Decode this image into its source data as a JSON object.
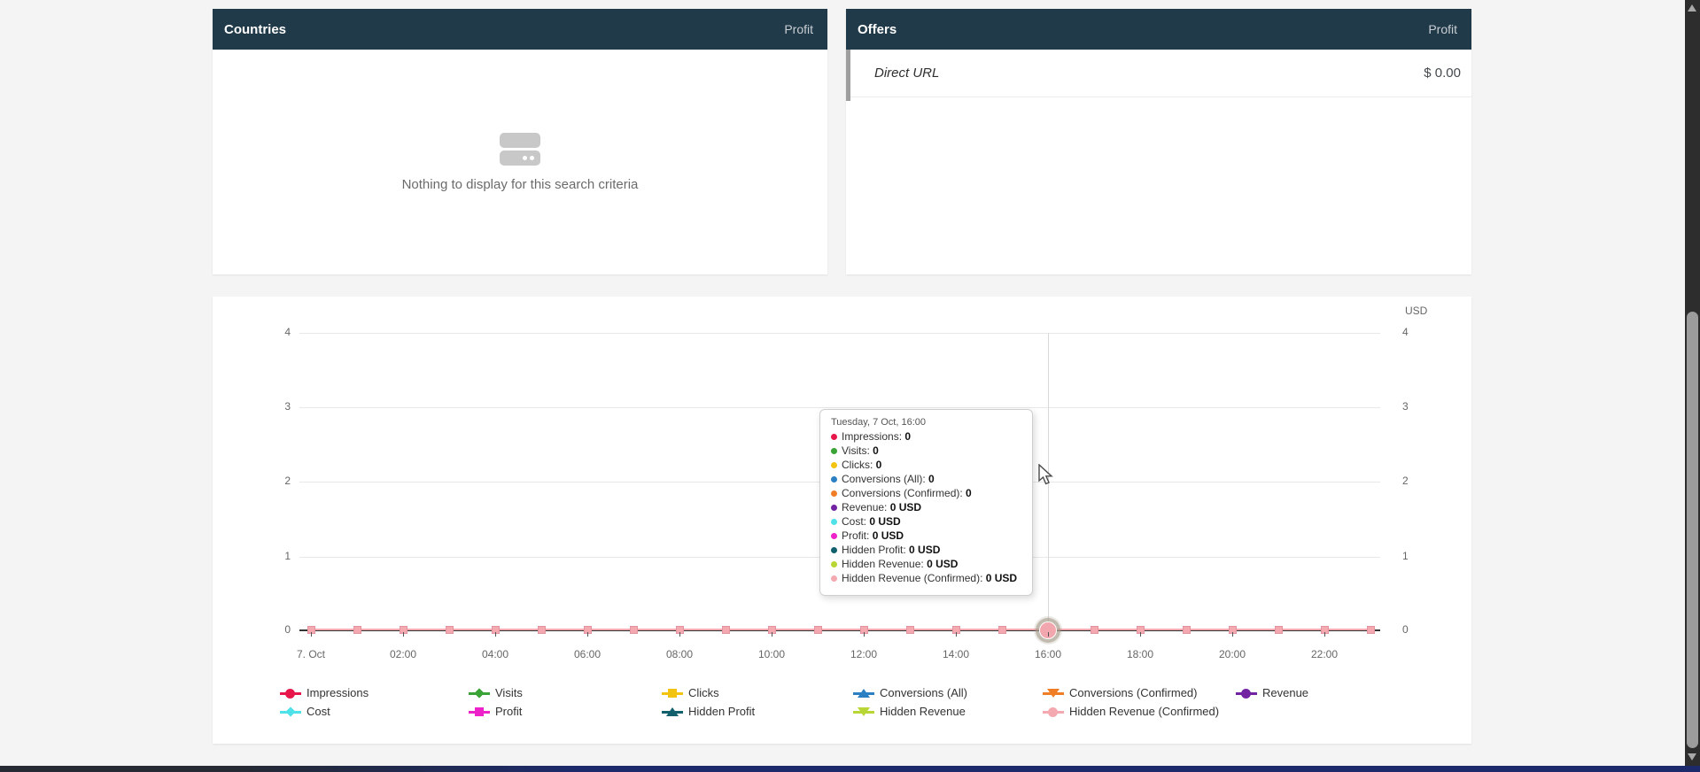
{
  "countries_panel": {
    "title": "Countries",
    "metric": "Profit",
    "empty_text": "Nothing to display for this search criteria"
  },
  "offers_panel": {
    "title": "Offers",
    "metric": "Profit",
    "rows": [
      {
        "name": "Direct URL",
        "value": "$ 0.00"
      }
    ]
  },
  "chart": {
    "unit_label": "USD",
    "tooltip_title": "Tuesday, 7 Oct, 16:00",
    "hovered_x": "16:00"
  },
  "chart_data": {
    "type": "line",
    "title": "",
    "xlabel": "",
    "ylabel": "USD",
    "ylim": [
      0,
      4
    ],
    "grid": true,
    "legend_position": "bottom",
    "x_date": "Tuesday, 7 Oct",
    "x": [
      "00:00",
      "01:00",
      "02:00",
      "03:00",
      "04:00",
      "05:00",
      "06:00",
      "07:00",
      "08:00",
      "09:00",
      "10:00",
      "11:00",
      "12:00",
      "13:00",
      "14:00",
      "15:00",
      "16:00",
      "17:00",
      "18:00",
      "19:00",
      "20:00",
      "21:00",
      "22:00",
      "23:00"
    ],
    "x_axis_labels": [
      "7. Oct",
      "02:00",
      "04:00",
      "06:00",
      "08:00",
      "10:00",
      "12:00",
      "14:00",
      "16:00",
      "18:00",
      "20:00",
      "22:00"
    ],
    "y_ticks": [
      "0",
      "1",
      "2",
      "3",
      "4"
    ],
    "series": [
      {
        "name": "Impressions",
        "color": "#e8174b",
        "marker": "circle",
        "unit": "",
        "values": [
          0,
          0,
          0,
          0,
          0,
          0,
          0,
          0,
          0,
          0,
          0,
          0,
          0,
          0,
          0,
          0,
          0,
          0,
          0,
          0,
          0,
          0,
          0,
          0
        ]
      },
      {
        "name": "Visits",
        "color": "#3aa335",
        "marker": "diamond",
        "unit": "",
        "values": [
          0,
          0,
          0,
          0,
          0,
          0,
          0,
          0,
          0,
          0,
          0,
          0,
          0,
          0,
          0,
          0,
          0,
          0,
          0,
          0,
          0,
          0,
          0,
          0
        ]
      },
      {
        "name": "Clicks",
        "color": "#f2c40f",
        "marker": "square",
        "unit": "",
        "values": [
          0,
          0,
          0,
          0,
          0,
          0,
          0,
          0,
          0,
          0,
          0,
          0,
          0,
          0,
          0,
          0,
          0,
          0,
          0,
          0,
          0,
          0,
          0,
          0
        ]
      },
      {
        "name": "Conversions (All)",
        "color": "#2b7fc3",
        "marker": "tri-up",
        "unit": "",
        "values": [
          0,
          0,
          0,
          0,
          0,
          0,
          0,
          0,
          0,
          0,
          0,
          0,
          0,
          0,
          0,
          0,
          0,
          0,
          0,
          0,
          0,
          0,
          0,
          0
        ]
      },
      {
        "name": "Conversions (Confirmed)",
        "color": "#ef7e26",
        "marker": "tri-down",
        "unit": "",
        "values": [
          0,
          0,
          0,
          0,
          0,
          0,
          0,
          0,
          0,
          0,
          0,
          0,
          0,
          0,
          0,
          0,
          0,
          0,
          0,
          0,
          0,
          0,
          0,
          0
        ]
      },
      {
        "name": "Revenue",
        "color": "#7123a1",
        "marker": "circle",
        "unit": "USD",
        "values": [
          0,
          0,
          0,
          0,
          0,
          0,
          0,
          0,
          0,
          0,
          0,
          0,
          0,
          0,
          0,
          0,
          0,
          0,
          0,
          0,
          0,
          0,
          0,
          0
        ]
      },
      {
        "name": "Cost",
        "color": "#4ee1e8",
        "marker": "diamond",
        "unit": "USD",
        "values": [
          0,
          0,
          0,
          0,
          0,
          0,
          0,
          0,
          0,
          0,
          0,
          0,
          0,
          0,
          0,
          0,
          0,
          0,
          0,
          0,
          0,
          0,
          0,
          0
        ]
      },
      {
        "name": "Profit",
        "color": "#ee22c9",
        "marker": "square",
        "unit": "USD",
        "values": [
          0,
          0,
          0,
          0,
          0,
          0,
          0,
          0,
          0,
          0,
          0,
          0,
          0,
          0,
          0,
          0,
          0,
          0,
          0,
          0,
          0,
          0,
          0,
          0
        ]
      },
      {
        "name": "Hidden Profit",
        "color": "#11606b",
        "marker": "tri-up",
        "unit": "USD",
        "values": [
          0,
          0,
          0,
          0,
          0,
          0,
          0,
          0,
          0,
          0,
          0,
          0,
          0,
          0,
          0,
          0,
          0,
          0,
          0,
          0,
          0,
          0,
          0,
          0
        ]
      },
      {
        "name": "Hidden Revenue",
        "color": "#b8d636",
        "marker": "tri-down",
        "unit": "USD",
        "values": [
          0,
          0,
          0,
          0,
          0,
          0,
          0,
          0,
          0,
          0,
          0,
          0,
          0,
          0,
          0,
          0,
          0,
          0,
          0,
          0,
          0,
          0,
          0,
          0
        ]
      },
      {
        "name": "Hidden Revenue (Confirmed)",
        "color": "#f4a9b1",
        "marker": "circle",
        "unit": "USD",
        "values": [
          0,
          0,
          0,
          0,
          0,
          0,
          0,
          0,
          0,
          0,
          0,
          0,
          0,
          0,
          0,
          0,
          0,
          0,
          0,
          0,
          0,
          0,
          0,
          0
        ]
      }
    ],
    "visible_series_color": "#f4a9b1"
  },
  "colors": {
    "panel_header_bg": "#203a49",
    "page_bg": "#f4f4f5",
    "grid": "#e8e8e8",
    "axis_text": "#666666",
    "hover_halo": "#a49b8a"
  }
}
